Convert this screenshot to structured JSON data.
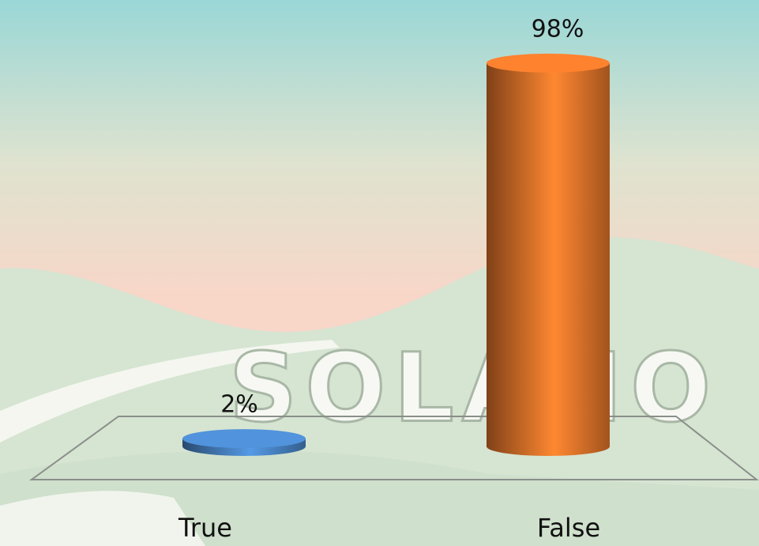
{
  "chart_data": {
    "type": "bar",
    "watermark": "SOLANO",
    "categories": [
      "True",
      "False"
    ],
    "values": [
      2,
      98
    ],
    "value_labels": [
      "2%",
      "98%"
    ],
    "colors": [
      "#4a86c8",
      "#e8762b"
    ]
  }
}
